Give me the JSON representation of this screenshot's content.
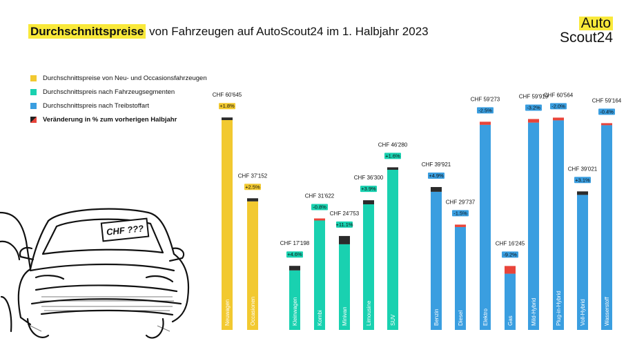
{
  "header": {
    "title_highlight": "Durchschnittspreise",
    "title_rest": " von Fahrzeugen auf AutoScout24 im 1. Halbjahr 2023"
  },
  "logo": {
    "line1": "Auto",
    "line2": "Scout24"
  },
  "legend": [
    {
      "label": "Durchschnittspreise von Neu- und Occasionsfahrzeugen",
      "color": "#f2c930"
    },
    {
      "label": "Durchschnittspreis nach Fahrzeugsegmenten",
      "color": "#19d1b0"
    },
    {
      "label": "Durchschnittspreis nach Treibstoffart",
      "color": "#3a9ee0"
    },
    {
      "label": "Veränderung in % zum vorherigen Halbjahr",
      "color": "#222222"
    }
  ],
  "car_sign": "CHF ???",
  "colors": {
    "yellow": "#f2c930",
    "teal": "#19d1b0",
    "blue": "#3a9ee0",
    "change_positive": "#2b2b2b",
    "change_negative": "#e8443a"
  },
  "chart_data": {
    "type": "bar",
    "title": "Durchschnittspreise von Fahrzeugen auf AutoScout24 im 1. Halbjahr 2023",
    "xlabel": "",
    "ylabel": "",
    "unit": "CHF",
    "bars": [
      {
        "category": "Neuwagen",
        "group": "yellow",
        "value": 60645,
        "price_label": "CHF 60'645",
        "change_label": "+1.8%",
        "change": 1.8
      },
      {
        "category": "Occasionen",
        "group": "yellow",
        "value": 37152,
        "price_label": "CHF 37'152",
        "change_label": "+2.5%",
        "change": 2.5
      },
      {
        "category": "Kleinwagen",
        "group": "teal",
        "value": 17198,
        "price_label": "CHF 17'198",
        "change_label": "+4.6%",
        "change": 4.6
      },
      {
        "category": "Kombi",
        "group": "teal",
        "value": 31622,
        "price_label": "CHF 31'622",
        "change_label": "-0.8%",
        "change": -0.8
      },
      {
        "category": "Minivan",
        "group": "teal",
        "value": 24753,
        "price_label": "CHF 24'753",
        "change_label": "+11.1%",
        "change": 11.1
      },
      {
        "category": "Limousine",
        "group": "teal",
        "value": 36300,
        "price_label": "CHF 36'300",
        "change_label": "+3.9%",
        "change": 3.9
      },
      {
        "category": "SUV",
        "group": "teal",
        "value": 46280,
        "price_label": "CHF 46'280",
        "change_label": "+1.6%",
        "change": 1.6
      },
      {
        "category": "Benzin",
        "group": "blue",
        "value": 39921,
        "price_label": "CHF 39'921",
        "change_label": "+4.9%",
        "change": 4.9
      },
      {
        "category": "Diesel",
        "group": "blue",
        "value": 29737,
        "price_label": "CHF 29'737",
        "change_label": "-1.5%",
        "change": -1.5
      },
      {
        "category": "Elektro",
        "group": "blue",
        "value": 59273,
        "price_label": "CHF 59'273",
        "change_label": "-2.5%",
        "change": -2.5
      },
      {
        "category": "Gas",
        "group": "blue",
        "value": 16245,
        "price_label": "CHF 16'245",
        "change_label": "-9.2%",
        "change": -9.2
      },
      {
        "category": "Mild-Hybrid",
        "group": "blue",
        "value": 59919,
        "price_label": "CHF 59'919",
        "change_label": "-3.2%",
        "change": -3.2
      },
      {
        "category": "Plug-in-Hybrid",
        "group": "blue",
        "value": 60564,
        "price_label": "CHF 60'564",
        "change_label": "-2.0%",
        "change": -2.0
      },
      {
        "category": "Voll-Hybrid",
        "group": "blue",
        "value": 39021,
        "price_label": "CHF 39'021",
        "change_label": "+3.1%",
        "change": 3.1
      },
      {
        "category": "Wasserstoff",
        "group": "blue",
        "value": 59164,
        "price_label": "CHF 59'164",
        "change_label": "-0.4%",
        "change": -0.4
      }
    ]
  }
}
